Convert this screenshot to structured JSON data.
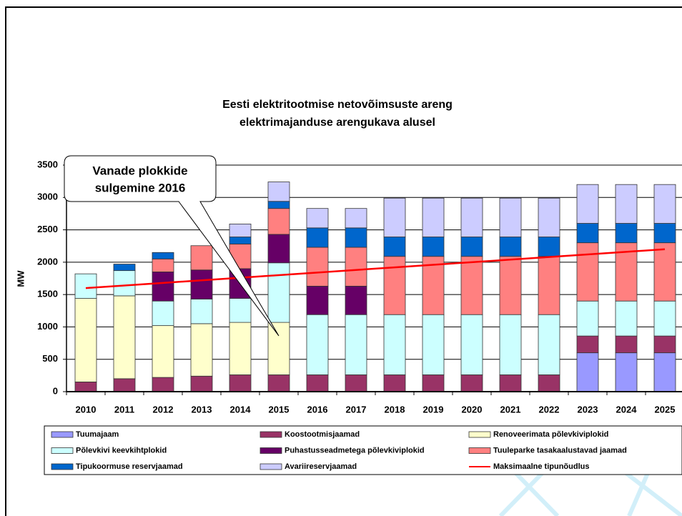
{
  "chart_data": {
    "type": "bar",
    "stacked": true,
    "title": [
      "Eesti elektritootmise netovõimsuste areng",
      "elektrimajanduse arengukava alusel"
    ],
    "ylabel": "MW",
    "annotation": [
      "Vanade plokkide",
      "sulgemine 2016"
    ],
    "categories": [
      "2010",
      "2011",
      "2012",
      "2013",
      "2014",
      "2015",
      "2016",
      "2017",
      "2018",
      "2019",
      "2020",
      "2021",
      "2022",
      "2023",
      "2024",
      "2025"
    ],
    "ylim": [
      0,
      3500
    ],
    "yticks": [
      0,
      500,
      1000,
      1500,
      2000,
      2500,
      3000,
      3500
    ],
    "grid": true,
    "series": [
      {
        "name": "Tuumajaam",
        "color": "#9999ff",
        "values": [
          null,
          null,
          null,
          null,
          null,
          null,
          null,
          null,
          null,
          null,
          null,
          null,
          null,
          600,
          600,
          600
        ]
      },
      {
        "name": "Koostootmisjaamad",
        "color": "#993366",
        "values": [
          150,
          200,
          220,
          240,
          260,
          260,
          260,
          260,
          260,
          260,
          260,
          260,
          260,
          260,
          260,
          260
        ]
      },
      {
        "name": "Renoveerimata põlevkiviplokid",
        "color": "#ffffcc",
        "values": [
          1290,
          1280,
          800,
          810,
          810,
          810,
          null,
          null,
          null,
          null,
          null,
          null,
          null,
          null,
          null,
          null
        ]
      },
      {
        "name": "Põlevkivi keevkihtplokid",
        "color": "#ccffff",
        "values": [
          380,
          390,
          380,
          380,
          370,
          920,
          930,
          930,
          930,
          930,
          930,
          930,
          930,
          540,
          540,
          540
        ]
      },
      {
        "name": "Puhastusseadmetega põlevkiviplokid",
        "color": "#660066",
        "values": [
          null,
          null,
          450,
          450,
          460,
          440,
          440,
          440,
          null,
          null,
          null,
          null,
          null,
          null,
          null,
          null
        ]
      },
      {
        "name": "Tuuleparke tasakaalustavad jaamad",
        "color": "#ff8080",
        "values": [
          null,
          null,
          200,
          375,
          380,
          400,
          600,
          600,
          900,
          900,
          900,
          900,
          900,
          900,
          900,
          900
        ]
      },
      {
        "name": "Tipukoormuse reservjaamad",
        "color": "#0066cc",
        "values": [
          null,
          100,
          100,
          null,
          110,
          110,
          300,
          300,
          300,
          300,
          300,
          300,
          300,
          300,
          300,
          300
        ]
      },
      {
        "name": "Avariireservjaamad",
        "color": "#ccccff",
        "values": [
          null,
          null,
          null,
          null,
          200,
          300,
          300,
          300,
          600,
          600,
          600,
          600,
          600,
          600,
          600,
          600
        ]
      }
    ],
    "line": {
      "name": "Maksimaalne tipunõudlus",
      "color": "#ff0000",
      "values": [
        1600,
        1640,
        1680,
        1720,
        1760,
        1800,
        1840,
        1880,
        1920,
        1960,
        2000,
        2040,
        2080,
        2120,
        2160,
        2200
      ]
    }
  }
}
